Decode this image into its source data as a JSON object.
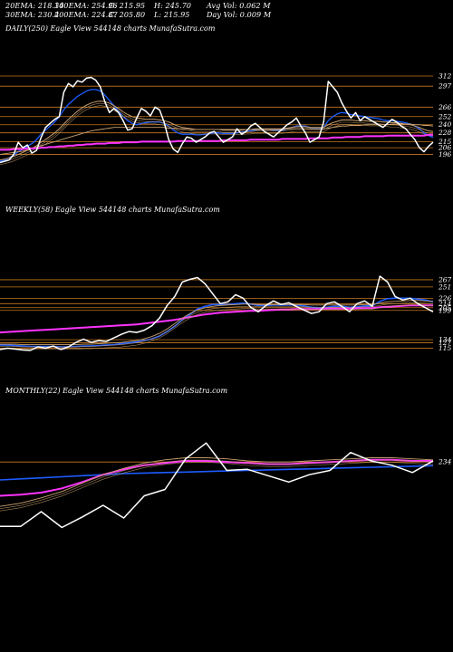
{
  "header": {
    "row1": [
      "20EMA: 218.34",
      "100EMA: 254.96",
      "C: 215.95",
      "H: 245.70",
      "Avg Vol: 0.062  M"
    ],
    "row2": [
      "30EMA: 230.4",
      "200EMA: 224.87",
      "C: 205.80",
      "L: 215.95",
      "Day Vol: 0.009 M"
    ]
  },
  "colors": {
    "background": "#000000",
    "price": "#ffffff",
    "ema_short": "#1e5cff",
    "ema_mid": "#ff33ff",
    "ema_long": "#c8a070",
    "level_line": "#c8781e"
  },
  "chart_data": [
    {
      "type": "line",
      "title": "DAILY(250) Eagle   View  544148 charts MunafaSutra.com",
      "yticks": [
        312,
        297,
        266,
        252,
        240,
        228,
        215,
        206,
        196
      ],
      "ylim": [
        170,
        320
      ],
      "series": [
        {
          "role": "price",
          "values": [
            184,
            186,
            188,
            196,
            214,
            206,
            210,
            198,
            202,
            221,
            236,
            242,
            248,
            252,
            288,
            301,
            296,
            305,
            303,
            309,
            310,
            306,
            296,
            274,
            258,
            264,
            258,
            246,
            232,
            234,
            250,
            264,
            260,
            253,
            266,
            262,
            244,
            218,
            204,
            199,
            212,
            222,
            220,
            214,
            218,
            222,
            228,
            230,
            222,
            214,
            218,
            222,
            234,
            226,
            230,
            238,
            242,
            236,
            230,
            226,
            222,
            228,
            234,
            240,
            244,
            250,
            238,
            228,
            214,
            218,
            222,
            244,
            304,
            296,
            288,
            272,
            260,
            250,
            258,
            246,
            252,
            248,
            244,
            240,
            236,
            242,
            248,
            244,
            238,
            234,
            226,
            218,
            206,
            200,
            208,
            214
          ]
        },
        {
          "role": "ema20",
          "values": [
            186,
            188,
            191,
            195,
            200,
            204,
            208,
            212,
            218,
            226,
            232,
            238,
            244,
            252,
            262,
            270,
            276,
            282,
            286,
            290,
            292,
            292,
            290,
            284,
            276,
            268,
            260,
            252,
            246,
            242,
            240,
            242,
            243,
            244,
            244,
            244,
            242,
            238,
            232,
            228,
            226,
            226,
            226,
            225,
            225,
            226,
            227,
            228,
            228,
            227,
            227,
            227,
            228,
            229,
            230,
            231,
            232,
            233,
            233,
            233,
            232,
            232,
            232,
            234,
            236,
            238,
            238,
            238,
            236,
            234,
            234,
            236,
            246,
            252,
            256,
            258,
            257,
            255,
            254,
            253,
            252,
            251,
            250,
            249,
            247,
            246,
            246,
            245,
            244,
            243,
            241,
            238,
            234,
            228,
            224,
            221
          ]
        },
        {
          "role": "ema30",
          "values": [
            188,
            189,
            191,
            193,
            196,
            199,
            202,
            205,
            209,
            214,
            218,
            223,
            228,
            234,
            241,
            248,
            254,
            260,
            265,
            269,
            272,
            274,
            275,
            274,
            272,
            268,
            264,
            259,
            255,
            252,
            250,
            249,
            248,
            248,
            248,
            247,
            246,
            244,
            241,
            238,
            236,
            235,
            234,
            233,
            233,
            233,
            233,
            233,
            233,
            232,
            232,
            232,
            232,
            232,
            233,
            233,
            234,
            234,
            234,
            234,
            234,
            234,
            234,
            235,
            236,
            237,
            237,
            237,
            236,
            236,
            236,
            236,
            240,
            243,
            245,
            247,
            247,
            247,
            246,
            246,
            246,
            245,
            245,
            245,
            244,
            244,
            243,
            243,
            242,
            241,
            240,
            238,
            236,
            233,
            231,
            230
          ]
        },
        {
          "role": "ema100",
          "values": [
            196,
            197,
            198,
            199,
            200,
            201,
            203,
            205,
            207,
            209,
            211,
            213,
            215,
            217,
            219,
            221,
            223,
            225,
            227,
            229,
            231,
            232,
            233,
            234,
            235,
            236,
            236,
            236,
            236,
            236,
            236,
            236,
            236,
            236,
            236,
            236,
            236,
            235,
            235,
            234,
            234,
            234,
            233,
            233,
            233,
            233,
            233,
            233,
            233,
            233,
            233,
            233,
            233,
            233,
            233,
            233,
            233,
            233,
            233,
            233,
            233,
            233,
            233,
            234,
            234,
            234,
            234,
            234,
            234,
            234,
            234,
            234,
            235,
            236,
            237,
            238,
            238,
            239,
            239,
            239,
            240,
            240,
            240,
            240,
            240,
            240,
            241,
            241,
            241,
            241,
            241,
            240,
            240,
            239,
            239,
            238
          ]
        },
        {
          "role": "ema200",
          "values": [
            203,
            203,
            203,
            204,
            204,
            204,
            205,
            205,
            205,
            206,
            206,
            207,
            207,
            208,
            208,
            209,
            209,
            210,
            210,
            211,
            211,
            212,
            212,
            212,
            213,
            213,
            213,
            214,
            214,
            214,
            214,
            215,
            215,
            215,
            215,
            215,
            215,
            215,
            215,
            216,
            216,
            216,
            216,
            216,
            216,
            216,
            216,
            216,
            216,
            217,
            217,
            217,
            217,
            217,
            217,
            218,
            218,
            218,
            218,
            218,
            218,
            218,
            219,
            219,
            219,
            219,
            219,
            219,
            220,
            220,
            220,
            220,
            220,
            221,
            221,
            221,
            222,
            222,
            222,
            222,
            223,
            223,
            223,
            223,
            223,
            224,
            224,
            224,
            224,
            224,
            224,
            224,
            224,
            224,
            225,
            225
          ]
        }
      ]
    },
    {
      "type": "line",
      "title": "WEEKLY(58) Eagle   View  544148 charts MunafaSutra.com",
      "yticks": [
        267,
        251,
        226,
        214,
        205,
        199,
        134,
        127,
        115
      ],
      "ylim": [
        100,
        285
      ],
      "series": [
        {
          "role": "price",
          "values": [
            112,
            115,
            113,
            111,
            110,
            118,
            115,
            120,
            112,
            118,
            128,
            135,
            128,
            132,
            130,
            138,
            146,
            152,
            150,
            155,
            165,
            182,
            210,
            230,
            262,
            268,
            272,
            258,
            236,
            214,
            218,
            234,
            226,
            206,
            196,
            210,
            220,
            212,
            216,
            208,
            200,
            192,
            196,
            214,
            218,
            208,
            196,
            214,
            220,
            208,
            275,
            262,
            230,
            222,
            226,
            214,
            205,
            196
          ]
        },
        {
          "role": "ema_short",
          "values": [
            122,
            122,
            121,
            120,
            119,
            119,
            119,
            119,
            118,
            118,
            119,
            120,
            120,
            121,
            122,
            123,
            125,
            127,
            129,
            132,
            136,
            142,
            152,
            164,
            178,
            190,
            202,
            208,
            212,
            212,
            212,
            214,
            215,
            213,
            210,
            210,
            211,
            211,
            211,
            211,
            209,
            206,
            205,
            206,
            208,
            208,
            206,
            207,
            209,
            209,
            219,
            225,
            226,
            226,
            226,
            224,
            222,
            218
          ]
        },
        {
          "role": "ema_mid",
          "values": [
            150,
            151,
            152,
            153,
            154,
            155,
            156,
            157,
            158,
            159,
            160,
            161,
            162,
            163,
            164,
            165,
            166,
            167,
            168,
            170,
            172,
            174,
            176,
            178,
            181,
            184,
            187,
            190,
            192,
            194,
            195,
            196,
            197,
            198,
            198,
            199,
            200,
            201,
            201,
            202,
            202,
            202,
            202,
            203,
            203,
            203,
            203,
            204,
            204,
            204,
            206,
            207,
            208,
            209,
            210,
            210,
            210,
            210
          ]
        },
        {
          "role": "ema_long",
          "values": [
            124,
            124,
            124,
            123,
            123,
            123,
            123,
            123,
            123,
            123,
            123,
            124,
            124,
            125,
            126,
            127,
            128,
            130,
            132,
            136,
            141,
            148,
            158,
            170,
            182,
            192,
            200,
            205,
            208,
            210,
            211,
            212,
            213,
            213,
            212,
            212,
            212,
            212,
            212,
            212,
            212,
            211,
            211,
            211,
            211,
            211,
            211,
            211,
            212,
            212,
            215,
            218,
            219,
            220,
            221,
            221,
            220,
            219
          ]
        }
      ]
    },
    {
      "type": "line",
      "title": "MONTHLY(22) Eagle   View  544148 charts MunafaSutra.com",
      "yticks": [
        234
      ],
      "ylim": [
        80,
        320
      ],
      "series": [
        {
          "role": "price",
          "values": [
            112,
            112,
            140,
            110,
            130,
            152,
            128,
            170,
            182,
            240,
            270,
            218,
            220,
            208,
            196,
            210,
            218,
            252,
            236,
            228,
            214,
            236
          ]
        },
        {
          "role": "ema_short",
          "values": [
            200,
            202,
            204,
            206,
            208,
            210,
            212,
            213,
            214,
            215,
            216,
            217,
            218,
            219,
            220,
            221,
            222,
            223,
            224,
            225,
            226,
            227
          ]
        },
        {
          "role": "ema_mid",
          "values": [
            170,
            172,
            176,
            184,
            196,
            210,
            220,
            228,
            232,
            236,
            236,
            234,
            232,
            230,
            230,
            232,
            234,
            236,
            238,
            238,
            236,
            236
          ]
        },
        {
          "role": "ema_long",
          "values": [
            150,
            156,
            166,
            178,
            194,
            210,
            222,
            232,
            238,
            242,
            242,
            240,
            236,
            234,
            234,
            236,
            238,
            240,
            242,
            242,
            240,
            238
          ]
        }
      ]
    }
  ]
}
